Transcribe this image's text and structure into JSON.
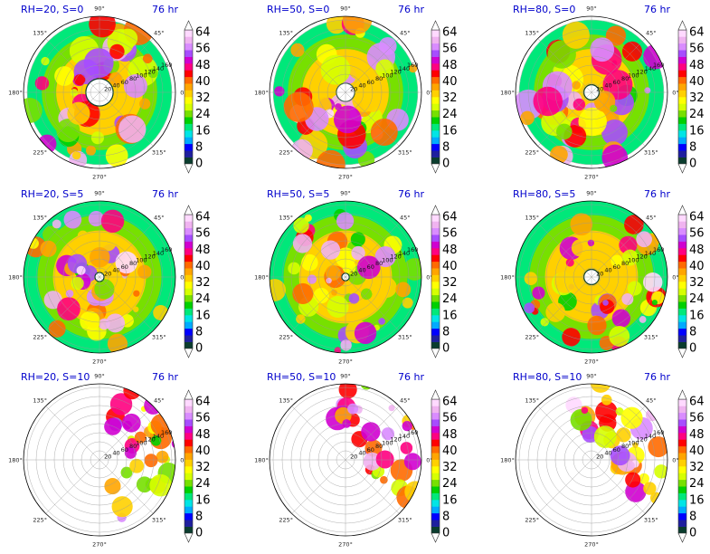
{
  "chart_data": {
    "type": "heatmap",
    "projection": "polar",
    "angle_tick_labels": [
      "0°",
      "45°",
      "90°",
      "135°",
      "180°",
      "225°",
      "270°",
      "315°"
    ],
    "radial_tick_labels": [
      "20",
      "40",
      "60",
      "80",
      "100",
      "120",
      "140",
      "160"
    ],
    "colorbar": {
      "tick_labels": [
        "0",
        "8",
        "16",
        "24",
        "32",
        "40",
        "48",
        "56",
        "64"
      ],
      "colors": [
        "#0b3d2e",
        "#1f1f9e",
        "#0000ff",
        "#00aaff",
        "#00e5e5",
        "#00e87a",
        "#00d000",
        "#77e000",
        "#d6ff00",
        "#ffff00",
        "#ffd000",
        "#ffa500",
        "#ff6a00",
        "#ff0000",
        "#ff0080",
        "#d000d0",
        "#a64dff",
        "#d98cff",
        "#f0b3f0",
        "#ffd9ff"
      ]
    },
    "panels": [
      {
        "title": "RH=20, S=0",
        "time": "76 hr",
        "coverage": "full",
        "eye": 0.18,
        "shift": 0
      },
      {
        "title": "RH=50, S=0",
        "time": "76 hr",
        "coverage": "full",
        "eye": 0.12,
        "shift": 0
      },
      {
        "title": "RH=80, S=0",
        "time": "76 hr",
        "coverage": "full",
        "eye": 0.1,
        "shift": 0
      },
      {
        "title": "RH=20, S=5",
        "time": "76 hr",
        "coverage": "mostly",
        "eye": 0.06,
        "shift": 0.1
      },
      {
        "title": "RH=50, S=5",
        "time": "76 hr",
        "coverage": "mostly",
        "eye": 0.05,
        "shift": 0.2
      },
      {
        "title": "RH=80, S=5",
        "time": "76 hr",
        "coverage": "mostly",
        "eye": 0.1,
        "shift": 0.1
      },
      {
        "title": "RH=20, S=10",
        "time": "76 hr",
        "coverage": "east",
        "eye": 0,
        "shift": 0.5
      },
      {
        "title": "RH=50, S=10",
        "time": "76 hr",
        "coverage": "northeast",
        "eye": 0,
        "shift": 0.5
      },
      {
        "title": "RH=80, S=10",
        "time": "76 hr",
        "coverage": "northeast",
        "eye": 0,
        "shift": 0.4
      }
    ]
  }
}
